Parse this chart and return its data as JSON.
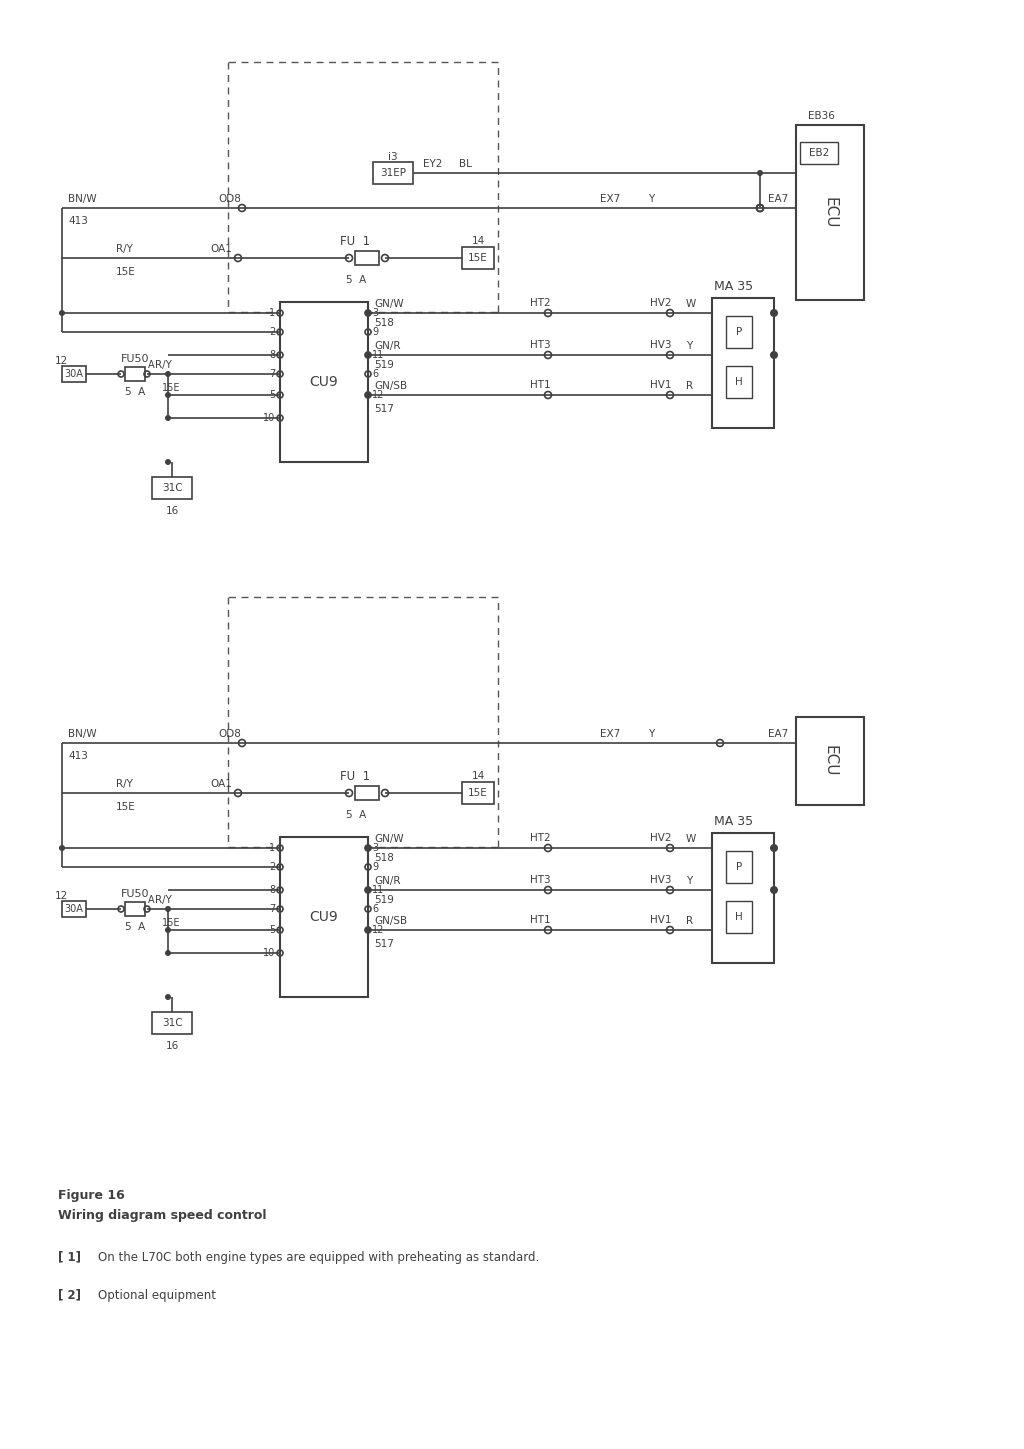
{
  "bg_color": "#ffffff",
  "line_color": "#404040",
  "text_color": "#404040",
  "figsize": [
    10.24,
    14.49
  ],
  "dpi": 100,
  "caption_title": "Figure 16",
  "caption_subtitle": "Wiring diagram speed control",
  "footnote1_bold": "[ 1]",
  "footnote1_text": "On the L70C both engine types are equipped with preheating as standard.",
  "footnote2_bold": "[ 2]",
  "footnote2_text": "Optional equipment"
}
